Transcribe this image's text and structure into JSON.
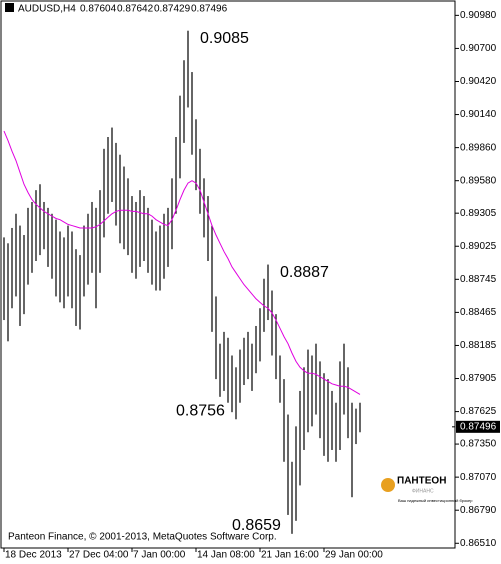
{
  "chart_data": {
    "type": "ohlc",
    "symbol": "AUDUSD,H4",
    "header_prices": [
      0.87604,
      0.87642,
      0.87429,
      0.87496
    ],
    "last_price": 0.87496,
    "footer": "Panteon Finance, © 2001-2013, MetaQuotes Software Corp.",
    "logo": {
      "name": "ПАНТЕОН",
      "sub": "ФИНАНС",
      "tagline": "Ваш надежный инвестиционный брокер"
    },
    "annotations": [
      {
        "text": "0.9085",
        "index": 46,
        "value": 0.9085
      },
      {
        "text": "0.8887",
        "index": 66,
        "value": 0.8887
      },
      {
        "text": "0.8756",
        "index": 58,
        "value": 0.8756
      },
      {
        "text": "0.8659",
        "index": 72,
        "value": 0.8659
      }
    ],
    "ylim": [
      0.8647,
      0.9111
    ],
    "yticks": [
      {
        "value": 0.9098,
        "label": "0.90980"
      },
      {
        "value": 0.907,
        "label": "0.90700"
      },
      {
        "value": 0.9042,
        "label": "0.90420"
      },
      {
        "value": 0.9014,
        "label": "0.90140"
      },
      {
        "value": 0.8986,
        "label": "0.89860"
      },
      {
        "value": 0.8958,
        "label": "0.89580"
      },
      {
        "value": 0.89305,
        "label": "0.89305"
      },
      {
        "value": 0.89025,
        "label": "0.89025"
      },
      {
        "value": 0.88745,
        "label": "0.88745"
      },
      {
        "value": 0.88465,
        "label": "0.88465"
      },
      {
        "value": 0.88185,
        "label": "0.88185"
      },
      {
        "value": 0.87905,
        "label": "0.87905"
      },
      {
        "value": 0.87625,
        "label": "0.87625"
      },
      {
        "value": 0.8735,
        "label": "0.87350"
      },
      {
        "value": 0.8707,
        "label": "0.87070"
      },
      {
        "value": 0.8679,
        "label": "0.86790"
      },
      {
        "value": 0.8651,
        "label": "0.86510"
      }
    ],
    "categories": [
      "18 Dec 2013",
      null,
      null,
      null,
      null,
      null,
      null,
      null,
      null,
      null,
      null,
      null,
      null,
      null,
      null,
      null,
      "27 Dec 04:00",
      null,
      null,
      null,
      null,
      null,
      null,
      null,
      null,
      null,
      null,
      null,
      null,
      null,
      null,
      null,
      "7 Jan 00:00",
      null,
      null,
      null,
      null,
      null,
      null,
      null,
      null,
      null,
      null,
      null,
      null,
      null,
      null,
      null,
      "14 Jan 08:00",
      null,
      null,
      null,
      null,
      null,
      null,
      null,
      null,
      null,
      null,
      null,
      null,
      null,
      null,
      null,
      "21 Jan 16:00",
      null,
      null,
      null,
      null,
      null,
      null,
      null,
      null,
      null,
      null,
      null,
      null,
      null,
      null,
      null,
      "29 Jan 00:00",
      null,
      null,
      null,
      null,
      null,
      null,
      null,
      null,
      null
    ],
    "bar_color": "#000000",
    "high": [
      0.891,
      0.8905,
      0.8918,
      0.893,
      0.892,
      0.8912,
      0.8935,
      0.894,
      0.895,
      0.8955,
      0.894,
      0.8935,
      0.893,
      0.8925,
      0.8915,
      0.891,
      0.892,
      0.8915,
      0.89,
      0.8895,
      0.892,
      0.893,
      0.894,
      0.8935,
      0.895,
      0.8985,
      0.8995,
      0.9003,
      0.899,
      0.898,
      0.897,
      0.896,
      0.8945,
      0.894,
      0.895,
      0.8945,
      0.8935,
      0.8925,
      0.8915,
      0.892,
      0.893,
      0.8935,
      0.896,
      0.8995,
      0.903,
      0.906,
      0.9085,
      0.905,
      0.901,
      0.8985,
      0.896,
      0.8945,
      0.892,
      0.886,
      0.882,
      0.883,
      0.8825,
      0.881,
      0.88,
      0.8815,
      0.8825,
      0.883,
      0.882,
      0.8835,
      0.885,
      0.8875,
      0.8887,
      0.8865,
      0.8845,
      0.881,
      0.879,
      0.876,
      0.872,
      0.875,
      0.878,
      0.88,
      0.8815,
      0.881,
      0.882,
      0.8805,
      0.8795,
      0.879,
      0.878,
      0.877,
      0.8805,
      0.882,
      0.88,
      0.877,
      0.8765,
      0.877
    ],
    "low": [
      0.884,
      0.8822,
      0.885,
      0.886,
      0.8835,
      0.8845,
      0.887,
      0.888,
      0.889,
      0.8895,
      0.89,
      0.8885,
      0.8875,
      0.886,
      0.8855,
      0.885,
      0.886,
      0.885,
      0.8835,
      0.8832,
      0.886,
      0.887,
      0.888,
      0.885,
      0.888,
      0.891,
      0.893,
      0.894,
      0.892,
      0.8905,
      0.89,
      0.8895,
      0.888,
      0.8875,
      0.8885,
      0.889,
      0.888,
      0.887,
      0.8865,
      0.8865,
      0.8875,
      0.8885,
      0.89,
      0.893,
      0.896,
      0.899,
      0.902,
      0.898,
      0.895,
      0.893,
      0.891,
      0.889,
      0.883,
      0.879,
      0.8775,
      0.878,
      0.877,
      0.8762,
      0.8756,
      0.877,
      0.8785,
      0.879,
      0.878,
      0.8795,
      0.8805,
      0.883,
      0.884,
      0.881,
      0.879,
      0.877,
      0.872,
      0.8675,
      0.8659,
      0.867,
      0.87,
      0.873,
      0.8745,
      0.875,
      0.876,
      0.874,
      0.8725,
      0.872,
      0.873,
      0.872,
      0.873,
      0.876,
      0.874,
      0.869,
      0.8735,
      0.8745
    ],
    "ma": {
      "color": "#e000e0",
      "values": [
        0.9,
        0.8992,
        0.8983,
        0.8975,
        0.8965,
        0.8955,
        0.8948,
        0.8942,
        0.8938,
        0.8935,
        0.8932,
        0.893,
        0.8928,
        0.8926,
        0.8925,
        0.8923,
        0.8921,
        0.892,
        0.8919,
        0.8918,
        0.8918,
        0.8918,
        0.8918,
        0.8919,
        0.8921,
        0.8924,
        0.8927,
        0.893,
        0.8932,
        0.8933,
        0.8933,
        0.8933,
        0.8932,
        0.8932,
        0.8931,
        0.893,
        0.893,
        0.8928,
        0.8925,
        0.8923,
        0.8921,
        0.892,
        0.8925,
        0.8933,
        0.8942,
        0.895,
        0.8956,
        0.8958,
        0.8956,
        0.895,
        0.894,
        0.893,
        0.892,
        0.8912,
        0.8905,
        0.8898,
        0.8892,
        0.8885,
        0.888,
        0.8875,
        0.887,
        0.8866,
        0.8862,
        0.8858,
        0.8855,
        0.8852,
        0.885,
        0.8846,
        0.884,
        0.8833,
        0.8826,
        0.882,
        0.8812,
        0.8805,
        0.88,
        0.8797,
        0.8795,
        0.8795,
        0.8794,
        0.8792,
        0.879,
        0.8788,
        0.8786,
        0.8785,
        0.8784,
        0.8784,
        0.8783,
        0.8781,
        0.8779,
        0.8777
      ]
    }
  }
}
